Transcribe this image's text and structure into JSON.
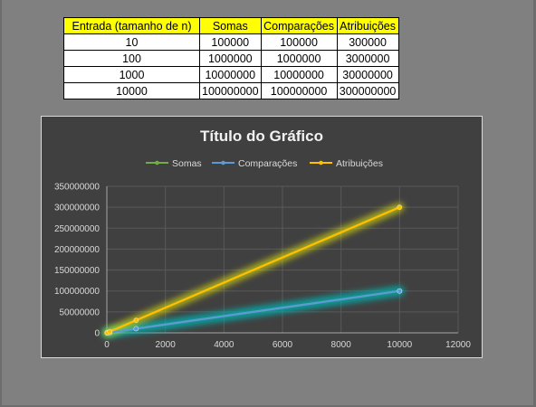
{
  "table": {
    "headers": [
      "Entrada (tamanho de n)",
      "Somas",
      "Comparações",
      "Atribuições"
    ],
    "rows": [
      [
        "10",
        "100000",
        "100000",
        "300000"
      ],
      [
        "100",
        "1000000",
        "1000000",
        "3000000"
      ],
      [
        "1000",
        "10000000",
        "10000000",
        "30000000"
      ],
      [
        "10000",
        "100000000",
        "100000000",
        "300000000"
      ]
    ]
  },
  "chart_data": {
    "type": "line",
    "title": "Título do Gráfico",
    "xlabel": "",
    "ylabel": "",
    "x": [
      10,
      100,
      1000,
      10000
    ],
    "series": [
      {
        "name": "Somas",
        "values": [
          100000,
          1000000,
          10000000,
          100000000
        ],
        "color": "#70ad47"
      },
      {
        "name": "Comparações",
        "values": [
          100000,
          1000000,
          10000000,
          100000000
        ],
        "color": "#5b9bd5"
      },
      {
        "name": "Atribuições",
        "values": [
          300000,
          3000000,
          30000000,
          300000000
        ],
        "color": "#ffc000"
      }
    ],
    "xlim": [
      0,
      12000
    ],
    "ylim": [
      0,
      350000000
    ],
    "xticks": [
      "0",
      "2000",
      "4000",
      "6000",
      "8000",
      "10000",
      "12000"
    ],
    "yticks": [
      "0",
      "50000000",
      "100000000",
      "150000000",
      "200000000",
      "250000000",
      "300000000",
      "350000000"
    ],
    "grid": true,
    "legend_position": "top"
  },
  "colors": {
    "chart_background": "#404040",
    "header_fill": "#ffff00",
    "glow_yellow": "#ffff00",
    "glow_teal": "#00b0b0"
  }
}
